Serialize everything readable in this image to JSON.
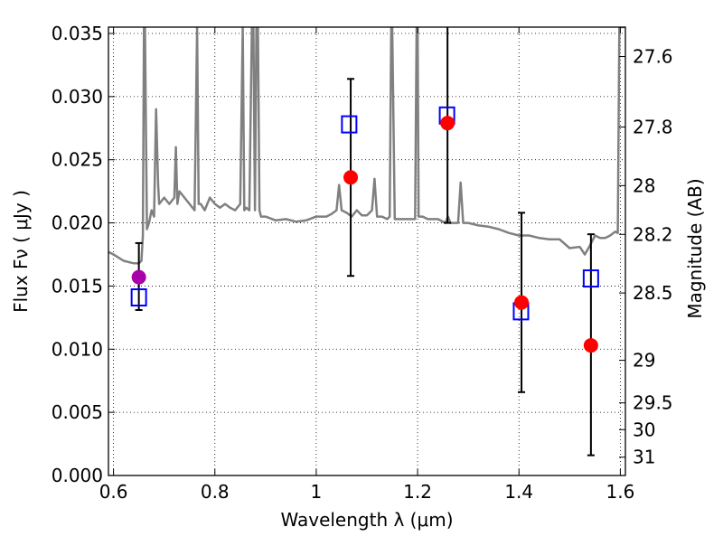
{
  "chart_data": {
    "type": "scatter",
    "xlabel": "Wavelength  λ (μm)",
    "ylabel": "Flux  Fν  ( μJy )",
    "y2label": "Magnitude (AB)",
    "xlim": [
      0.59,
      1.61
    ],
    "ylim": [
      0.0,
      0.0355
    ],
    "grid": true,
    "x_ticks": [
      0.6,
      0.8,
      1.0,
      1.2,
      1.4,
      1.6
    ],
    "x_tick_labels": [
      "0.6",
      "0.8",
      "1",
      "1.2",
      "1.4",
      "1.6"
    ],
    "y_ticks": [
      0.0,
      0.005,
      0.01,
      0.015,
      0.02,
      0.025,
      0.03,
      0.035
    ],
    "y_tick_labels": [
      "0.000",
      "0.005",
      "0.010",
      "0.015",
      "0.020",
      "0.025",
      "0.030",
      "0.035"
    ],
    "y2_ticks": [
      {
        "label": "27.6",
        "flux": 0.03317
      },
      {
        "label": "27.8",
        "flux": 0.02759
      },
      {
        "label": "28",
        "flux": 0.02295
      },
      {
        "label": "28.2",
        "flux": 0.01909
      },
      {
        "label": "28.5",
        "flux": 0.01445
      },
      {
        "label": "29",
        "flux": 0.00912
      },
      {
        "label": "29.5",
        "flux": 0.00575
      },
      {
        "label": "30",
        "flux": 0.00363
      },
      {
        "label": "31",
        "flux": 0.00145
      }
    ],
    "model_spectrum": {
      "color": "#808080",
      "x": [
        0.59,
        0.6,
        0.62,
        0.64,
        0.65,
        0.655,
        0.658,
        0.66,
        0.662,
        0.666,
        0.67,
        0.675,
        0.68,
        0.684,
        0.688,
        0.69,
        0.7,
        0.71,
        0.72,
        0.723,
        0.726,
        0.73,
        0.74,
        0.75,
        0.76,
        0.765,
        0.768,
        0.772,
        0.78,
        0.79,
        0.8,
        0.81,
        0.82,
        0.83,
        0.84,
        0.85,
        0.855,
        0.858,
        0.862,
        0.868,
        0.873,
        0.876,
        0.879,
        0.882,
        0.885,
        0.888,
        0.891,
        0.9,
        0.92,
        0.94,
        0.96,
        0.98,
        1.0,
        1.02,
        1.03,
        1.04,
        1.045,
        1.05,
        1.06,
        1.07,
        1.08,
        1.09,
        1.1,
        1.11,
        1.115,
        1.12,
        1.13,
        1.14,
        1.145,
        1.148,
        1.15,
        1.155,
        1.16,
        1.17,
        1.18,
        1.19,
        1.195,
        1.198,
        1.2,
        1.202,
        1.21,
        1.22,
        1.24,
        1.255,
        1.26,
        1.265,
        1.27,
        1.28,
        1.285,
        1.29,
        1.3,
        1.32,
        1.34,
        1.36,
        1.38,
        1.4,
        1.42,
        1.44,
        1.46,
        1.48,
        1.5,
        1.52,
        1.53,
        1.54,
        1.55,
        1.56,
        1.57,
        1.58,
        1.59,
        1.595,
        1.598,
        1.6,
        1.61
      ],
      "y": [
        0.0177,
        0.0175,
        0.017,
        0.0168,
        0.0168,
        0.017,
        0.019,
        0.0355,
        0.0355,
        0.0195,
        0.02,
        0.021,
        0.0205,
        0.029,
        0.023,
        0.0215,
        0.022,
        0.0215,
        0.022,
        0.026,
        0.0215,
        0.0225,
        0.022,
        0.0215,
        0.021,
        0.0355,
        0.0215,
        0.0215,
        0.021,
        0.022,
        0.0215,
        0.0212,
        0.0215,
        0.0212,
        0.021,
        0.0215,
        0.0355,
        0.021,
        0.0212,
        0.021,
        0.0355,
        0.0355,
        0.021,
        0.0355,
        0.0355,
        0.021,
        0.0205,
        0.0205,
        0.0202,
        0.0203,
        0.0201,
        0.0202,
        0.0205,
        0.0205,
        0.0207,
        0.021,
        0.023,
        0.021,
        0.0208,
        0.0205,
        0.021,
        0.0206,
        0.0206,
        0.021,
        0.0235,
        0.0205,
        0.0205,
        0.0203,
        0.0205,
        0.0355,
        0.0355,
        0.0203,
        0.0203,
        0.0203,
        0.0203,
        0.0203,
        0.0203,
        0.0355,
        0.0355,
        0.0205,
        0.0205,
        0.0203,
        0.0203,
        0.02,
        0.0205,
        0.02,
        0.02,
        0.02,
        0.0232,
        0.02,
        0.02,
        0.0198,
        0.0197,
        0.0195,
        0.0192,
        0.019,
        0.019,
        0.0188,
        0.0187,
        0.0187,
        0.018,
        0.0181,
        0.0175,
        0.0182,
        0.019,
        0.0188,
        0.0188,
        0.019,
        0.0193,
        0.0192,
        0.0355,
        0.0355,
        0.0355
      ]
    },
    "series": [
      {
        "marker": "open-square",
        "color": "#0000ff",
        "x": [
          0.65,
          1.065,
          1.258,
          1.404,
          1.542
        ],
        "y": [
          0.0141,
          0.0278,
          0.0285,
          0.013,
          0.0156
        ]
      },
      {
        "marker": "filled-circle",
        "color": "#ff0000",
        "x": [
          1.068,
          1.259,
          1.405,
          1.542
        ],
        "y": [
          0.0236,
          0.0279,
          0.0137,
          0.0103
        ]
      },
      {
        "marker": "filled-circle",
        "color": "#aa00aa",
        "x": [
          0.65
        ],
        "y": [
          0.0157
        ]
      }
    ],
    "error_bars": {
      "color": "#000000",
      "bars": [
        {
          "x": 0.65,
          "low": 0.0131,
          "high": 0.0184
        },
        {
          "x": 1.068,
          "low": 0.0158,
          "high": 0.0314
        },
        {
          "x": 1.259,
          "low": 0.02,
          "high": 0.0358
        },
        {
          "x": 1.405,
          "low": 0.0066,
          "high": 0.0208
        },
        {
          "x": 1.542,
          "low": 0.0016,
          "high": 0.0191
        }
      ]
    }
  }
}
